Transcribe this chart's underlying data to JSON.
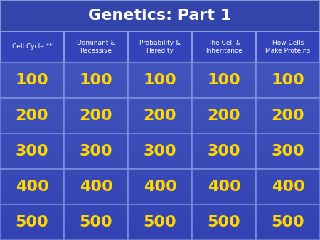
{
  "title": "Genetics: Part 1",
  "title_color": "#FFFFFF",
  "title_bg_color": "#3333AA",
  "header_bg_color": "#4444BB",
  "cell_bg_color": "#4444CC",
  "grid_color": "#8888FF",
  "columns": [
    "Cell Cycle **",
    "Dominant &\nRecessive",
    "Probability &\nHeredity",
    "The Cell &\nInheritance",
    "How Cells\nMake Proteins"
  ],
  "values": [
    100,
    200,
    300,
    400,
    500
  ],
  "point_color": "#FFD700",
  "header_text_color": "#FFFFFF",
  "background_top": "#6699CC",
  "background_bottom": "#3333AA",
  "n_cols": 5,
  "n_rows": 5
}
